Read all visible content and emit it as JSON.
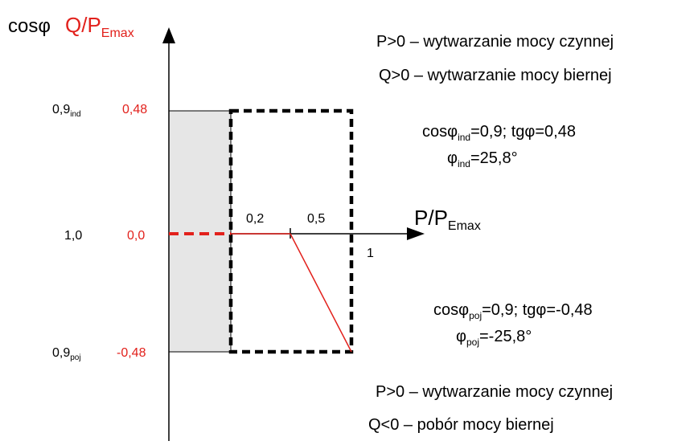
{
  "colors": {
    "black": "#000000",
    "red": "#e2211c",
    "gray_fill": "#e6e6e6"
  },
  "axes": {
    "y_title_cos": "cosφ",
    "y_title_q_main": "Q/P",
    "y_title_q_sub": "Emax",
    "x_title_main": "P/P",
    "x_title_sub": "Emax"
  },
  "left_labels": [
    {
      "cos_main": "0,9",
      "cos_sub": "ind",
      "q_value": "0,48"
    },
    {
      "cos_main": "1,0",
      "cos_sub": "",
      "q_value": "0,0"
    },
    {
      "cos_main": "0,9",
      "cos_sub": "poj",
      "q_value": "-0,48"
    }
  ],
  "x_ticks": {
    "t1": "0,2",
    "t2": "0,5",
    "t3": "1"
  },
  "notes": {
    "top_line1": "P>0 – wytwarzanie mocy czynnej",
    "top_line2": "Q>0 – wytwarzanie mocy biernej",
    "ind_a_main": "cosφ",
    "ind_a_sub": "ind",
    "ind_a_rest": "=0,9; tgφ=0,48",
    "ind_b_main": "φ",
    "ind_b_sub": "ind",
    "ind_b_rest": "=25,8°",
    "poj_a_main": "cosφ",
    "poj_a_sub": "poj",
    "poj_a_rest": "=0,9; tgφ=-0,48",
    "poj_b_main": "φ",
    "poj_b_sub": "poj",
    "poj_b_rest": "=-25,8°",
    "bottom_line1": "P>0 – wytwarzanie mocy czynnej",
    "bottom_line2": "Q<0 – pobór mocy biernej"
  }
}
